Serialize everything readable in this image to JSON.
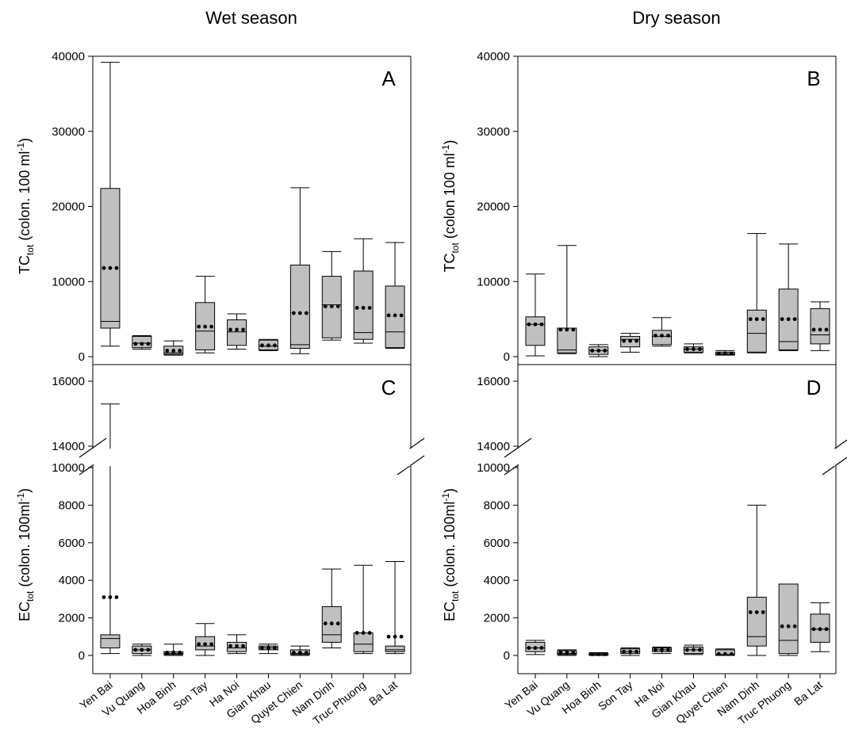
{
  "column_titles": {
    "left": "Wet season",
    "right": "Dry season"
  },
  "sites": [
    "Yen Bai",
    "Vu Quang",
    "Hoa Binh",
    "Son Tay",
    "Ha Noi",
    "Gian Khau",
    "Quyet Chien",
    "Nam Dinh",
    "Truc Phuong",
    "Ba Lat"
  ],
  "colors": {
    "box_fill": "#c0c0c0",
    "line": "#000000",
    "mean_dot": "#000000"
  },
  "chart_data": [
    {
      "panel": "A",
      "type": "box",
      "column_title": "Wet season",
      "ylabel": {
        "base": "TC",
        "sub": "tot",
        "rest": " (colon. 100 ml",
        "sup": "-1",
        "close": ")"
      },
      "ylim": [
        0,
        40000
      ],
      "yticks": [
        "0",
        "10000",
        "20000",
        "30000",
        "40000"
      ],
      "boxes": [
        {
          "site": "Yen Bai",
          "whisker_low": 1400,
          "q1": 3800,
          "median": 4700,
          "q3": 22400,
          "whisker_high": 39200,
          "mean": 11800
        },
        {
          "site": "Vu Quang",
          "whisker_low": 1000,
          "q1": 1200,
          "median": 1800,
          "q3": 2700,
          "whisker_high": 2800,
          "mean": 1700
        },
        {
          "site": "Hoa Binh",
          "whisker_low": 200,
          "q1": 300,
          "median": 500,
          "q3": 1400,
          "whisker_high": 2100,
          "mean": 800
        },
        {
          "site": "Son Tay",
          "whisker_low": 500,
          "q1": 900,
          "median": 3400,
          "q3": 7200,
          "whisker_high": 10700,
          "mean": 4000
        },
        {
          "site": "Ha Noi",
          "whisker_low": 1000,
          "q1": 1500,
          "median": 3300,
          "q3": 4900,
          "whisker_high": 5700,
          "mean": 3600
        },
        {
          "site": "Gian Khau",
          "whisker_low": 800,
          "q1": 900,
          "median": 1400,
          "q3": 2200,
          "whisker_high": 2300,
          "mean": 1500
        },
        {
          "site": "Quyet Chien",
          "whisker_low": 400,
          "q1": 1100,
          "median": 1600,
          "q3": 12200,
          "whisker_high": 22500,
          "mean": 5800
        },
        {
          "site": "Nam Dinh",
          "whisker_low": 2200,
          "q1": 2500,
          "median": 6900,
          "q3": 10700,
          "whisker_high": 14000,
          "mean": 6700
        },
        {
          "site": "Truc Phuong",
          "whisker_low": 1800,
          "q1": 2300,
          "median": 3200,
          "q3": 11400,
          "whisker_high": 15700,
          "mean": 6500
        },
        {
          "site": "Ba Lat",
          "whisker_low": 1100,
          "q1": 1200,
          "median": 3300,
          "q3": 9400,
          "whisker_high": 15200,
          "mean": 5500
        }
      ]
    },
    {
      "panel": "B",
      "type": "box",
      "column_title": "Dry season",
      "ylabel": {
        "base": "TC",
        "sub": "tot",
        "rest": " (colon 100 ml",
        "sup": "-1",
        "close": ")"
      },
      "ylim": [
        0,
        40000
      ],
      "yticks": [
        "0",
        "10000",
        "20000",
        "30000",
        "40000"
      ],
      "boxes": [
        {
          "site": "Yen Bai",
          "whisker_low": 100,
          "q1": 1500,
          "median": 4300,
          "q3": 5300,
          "whisker_high": 11000,
          "mean": 4300
        },
        {
          "site": "Vu Quang",
          "whisker_low": 400,
          "q1": 500,
          "median": 900,
          "q3": 3800,
          "whisker_high": 14800,
          "mean": 3600
        },
        {
          "site": "Hoa Binh",
          "whisker_low": 0,
          "q1": 300,
          "median": 800,
          "q3": 1300,
          "whisker_high": 1600,
          "mean": 800
        },
        {
          "site": "Son Tay",
          "whisker_low": 600,
          "q1": 1300,
          "median": 2300,
          "q3": 2700,
          "whisker_high": 3100,
          "mean": 2100
        },
        {
          "site": "Ha Noi",
          "whisker_low": 1400,
          "q1": 1600,
          "median": 2700,
          "q3": 3500,
          "whisker_high": 5200,
          "mean": 2800
        },
        {
          "site": "Gian Khau",
          "whisker_low": 500,
          "q1": 600,
          "median": 1000,
          "q3": 1300,
          "whisker_high": 1700,
          "mean": 1000
        },
        {
          "site": "Quyet Chien",
          "whisker_low": 200,
          "q1": 250,
          "median": 400,
          "q3": 600,
          "whisker_high": 800,
          "mean": 400
        },
        {
          "site": "Nam Dinh",
          "whisker_low": 500,
          "q1": 600,
          "median": 3100,
          "q3": 6200,
          "whisker_high": 16400,
          "mean": 5000
        },
        {
          "site": "Truc Phuong",
          "whisker_low": 800,
          "q1": 900,
          "median": 2000,
          "q3": 9000,
          "whisker_high": 15000,
          "mean": 5000
        },
        {
          "site": "Ba Lat",
          "whisker_low": 800,
          "q1": 1700,
          "median": 2900,
          "q3": 6400,
          "whisker_high": 7300,
          "mean": 3600
        }
      ]
    },
    {
      "panel": "C",
      "type": "box",
      "column_title": "Wet season",
      "ylabel": {
        "base": "EC",
        "sub": "tot",
        "rest": " (colon. 100ml",
        "sup": "-1",
        "close": ")"
      },
      "axis_break": {
        "lower_range": [
          0,
          10000
        ],
        "upper_range": [
          14000,
          16000
        ]
      },
      "yticks_lower": [
        "0",
        "2000",
        "4000",
        "6000",
        "8000",
        "10000"
      ],
      "yticks_upper": [
        "14000",
        "16000"
      ],
      "boxes": [
        {
          "site": "Yen Bai",
          "whisker_low": 100,
          "q1": 400,
          "median": 900,
          "q3": 1100,
          "whisker_high": 15300,
          "mean": 3100
        },
        {
          "site": "Vu Quang",
          "whisker_low": 0,
          "q1": 100,
          "median": 300,
          "q3": 500,
          "whisker_high": 600,
          "mean": 300
        },
        {
          "site": "Hoa Binh",
          "whisker_low": 0,
          "q1": 50,
          "median": 100,
          "q3": 200,
          "whisker_high": 600,
          "mean": 150
        },
        {
          "site": "Son Tay",
          "whisker_low": 0,
          "q1": 300,
          "median": 500,
          "q3": 1000,
          "whisker_high": 1700,
          "mean": 600
        },
        {
          "site": "Ha Noi",
          "whisker_low": 100,
          "q1": 200,
          "median": 400,
          "q3": 700,
          "whisker_high": 1100,
          "mean": 500
        },
        {
          "site": "Gian Khau",
          "whisker_low": 100,
          "q1": 300,
          "median": 400,
          "q3": 500,
          "whisker_high": 600,
          "mean": 400
        },
        {
          "site": "Quyet Chien",
          "whisker_low": 0,
          "q1": 50,
          "median": 100,
          "q3": 300,
          "whisker_high": 500,
          "mean": 150
        },
        {
          "site": "Nam Dinh",
          "whisker_low": 400,
          "q1": 700,
          "median": 1100,
          "q3": 2600,
          "whisker_high": 4600,
          "mean": 1700
        },
        {
          "site": "Truc Phuong",
          "whisker_low": 100,
          "q1": 200,
          "median": 600,
          "q3": 1200,
          "whisker_high": 4800,
          "mean": 1200
        },
        {
          "site": "Ba Lat",
          "whisker_low": 100,
          "q1": 200,
          "median": 300,
          "q3": 500,
          "whisker_high": 5000,
          "mean": 1000
        }
      ]
    },
    {
      "panel": "D",
      "type": "box",
      "column_title": "Dry season",
      "ylabel": {
        "base": "EC",
        "sub": "tot",
        "rest": " (colon. 100ml",
        "sup": "-1",
        "close": ")"
      },
      "axis_break": {
        "lower_range": [
          0,
          10000
        ],
        "upper_range": [
          14000,
          16000
        ]
      },
      "yticks_lower": [
        "0",
        "2000",
        "4000",
        "6000",
        "8000",
        "10000"
      ],
      "yticks_upper": [
        "14000",
        "16000"
      ],
      "boxes": [
        {
          "site": "Yen Bai",
          "whisker_low": 50,
          "q1": 200,
          "median": 400,
          "q3": 700,
          "whisker_high": 800,
          "mean": 400
        },
        {
          "site": "Vu Quang",
          "whisker_low": 0,
          "q1": 50,
          "median": 100,
          "q3": 250,
          "whisker_high": 300,
          "mean": 150
        },
        {
          "site": "Hoa Binh",
          "whisker_low": 0,
          "q1": 20,
          "median": 50,
          "q3": 100,
          "whisker_high": 150,
          "mean": 60
        },
        {
          "site": "Son Tay",
          "whisker_low": 0,
          "q1": 100,
          "median": 200,
          "q3": 350,
          "whisker_high": 400,
          "mean": 200
        },
        {
          "site": "Ha Noi",
          "whisker_low": 100,
          "q1": 200,
          "median": 300,
          "q3": 400,
          "whisker_high": 450,
          "mean": 300
        },
        {
          "site": "Gian Khau",
          "whisker_low": 50,
          "q1": 100,
          "median": 300,
          "q3": 450,
          "whisker_high": 550,
          "mean": 300
        },
        {
          "site": "Quyet Chien",
          "whisker_low": 0,
          "q1": 20,
          "median": 50,
          "q3": 300,
          "whisker_high": 350,
          "mean": 80
        },
        {
          "site": "Nam Dinh",
          "whisker_low": 0,
          "q1": 500,
          "median": 1000,
          "q3": 3100,
          "whisker_high": 8000,
          "mean": 2300
        },
        {
          "site": "Truc Phuong",
          "whisker_low": 0,
          "q1": 100,
          "median": 800,
          "q3": 3800,
          "whisker_high": 3800,
          "mean": 1550
        },
        {
          "site": "Ba Lat",
          "whisker_low": 200,
          "q1": 700,
          "median": 1400,
          "q3": 2200,
          "whisker_high": 2800,
          "mean": 1400
        }
      ]
    }
  ]
}
